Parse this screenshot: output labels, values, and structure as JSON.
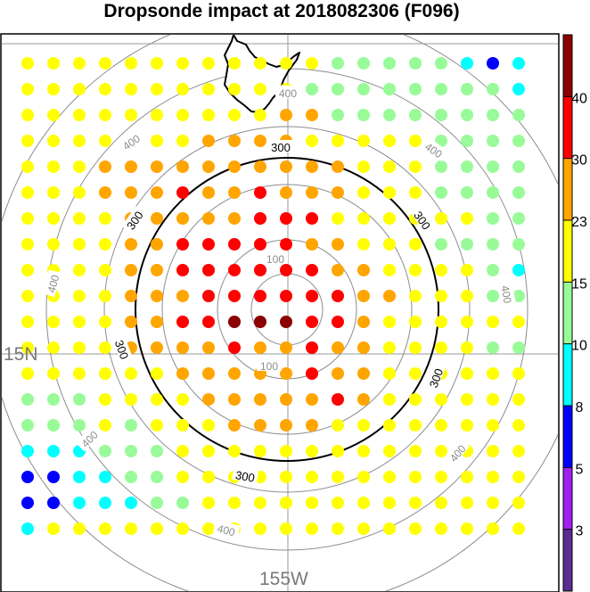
{
  "chart_data": {
    "type": "scatter",
    "title": "Dropsonde impact at 2018082306 (F096)",
    "lon_label": "155W",
    "lat_label": "15N",
    "grid_rows": 20,
    "grid_cols": 20,
    "colorbar": {
      "tick_labels": [
        "3",
        "5",
        "8",
        "10",
        "15",
        "23",
        "30",
        "40"
      ],
      "colors": [
        "#5a2d91",
        "#a020f0",
        "#0000ff",
        "#00ffff",
        "#98fb98",
        "#ffff00",
        "#ffa500",
        "#ff0000",
        "#8b0000"
      ]
    },
    "contours": [
      {
        "level": 100,
        "labels": [
          "100",
          "100"
        ],
        "color": "#7f7f7f"
      },
      {
        "level": 300,
        "labels": [
          "300",
          "300",
          "300",
          "300",
          "300",
          "300"
        ],
        "color": "#000000"
      },
      {
        "level": 400,
        "labels": [
          "400",
          "400",
          "400",
          "400",
          "400",
          "400",
          "400",
          "400"
        ],
        "color": "#7f7f7f"
      }
    ],
    "impact_category_grid": [
      "....................",
      "YYYYYYYYYYYYGGGGGCBC",
      "YYYYYYYYYYYGGGGGGGGC",
      "YYYYYYYYYYOOGGGGGGGG",
      "YYYYOYYOOOOYYYYYGGGG",
      "YYYOOOOOOOOOOYYYGGGG",
      "YYYOOOROOROOOYYYGGGG",
      "YYYYOOOOORRRYYYYYYGG",
      "YYYYOORRRRROOYYYGGGG",
      "YYYYOORRRRRROOYYYYGC",
      "YYYYOOORRRRRROOYYYGG",
      "YYYYOORRDDDRROYYYYYY",
      "YYYYOOOOROOROOYYYYGG",
      "YYYYYYOOOOOROOYYYYYY",
      "GGGYYYYOOOOOROYYYYYY",
      "GGGYGYYYOOOOYYYYYYYY",
      "CCCGGGYYYYYYYYYYYYYY",
      "BBCCGGYYYYYYYYYYYYYY",
      "BBCCCGGYYYYYYYYYYYYY",
      "CYYYYYYYYYYYYYYYYYYY"
    ],
    "category_colors": {
      "Y": "#ffff00",
      "G": "#98fb98",
      "C": "#00ffff",
      "B": "#0000ff",
      "O": "#ffa500",
      "R": "#ff0000",
      "D": "#8b0000"
    }
  }
}
